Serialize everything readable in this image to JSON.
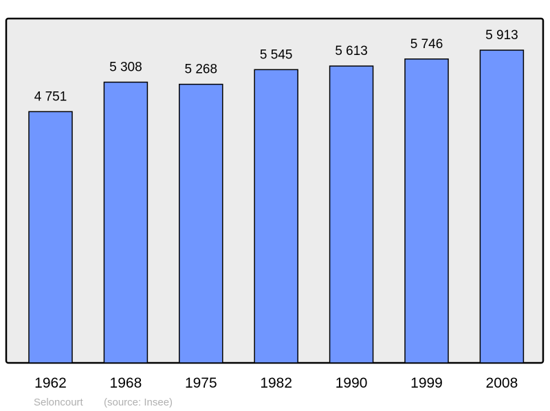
{
  "chart_data": {
    "type": "bar",
    "categories": [
      "1962",
      "1968",
      "1975",
      "1982",
      "1990",
      "1999",
      "2008"
    ],
    "values": [
      4751,
      5308,
      5268,
      5545,
      5613,
      5746,
      5913
    ],
    "value_labels": [
      "4 751",
      "5 308",
      "5 268",
      "5 545",
      "5 613",
      "5 746",
      "5 913"
    ],
    "title": "",
    "xlabel": "",
    "ylabel": "",
    "ylim": [
      0,
      5913
    ],
    "grid": false,
    "caption": {
      "place": "Seloncourt",
      "source": "(source: Insee)"
    },
    "colors": {
      "bar": "#7096ff",
      "background": "#ececec",
      "frame": "#000000",
      "caption": "#b0b0b0"
    }
  }
}
